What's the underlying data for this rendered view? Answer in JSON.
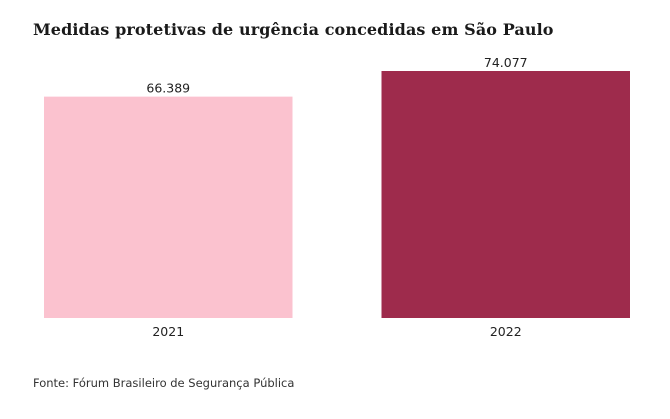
{
  "chart_data": {
    "type": "bar",
    "title": "Medidas protetivas de urgência concedidas em São Paulo",
    "categories": [
      "2021",
      "2022"
    ],
    "values": [
      66389,
      74077
    ],
    "value_labels": [
      "66.389",
      "74.077"
    ],
    "colors": [
      "#fbc2cf",
      "#9e2b4c"
    ],
    "xlabel": "",
    "ylabel": "",
    "ylim": [
      0,
      74077
    ],
    "grid": false,
    "legend": "none"
  },
  "source": {
    "label": "Fonte:",
    "text": "Fórum Brasileiro de Segurança Pública"
  }
}
